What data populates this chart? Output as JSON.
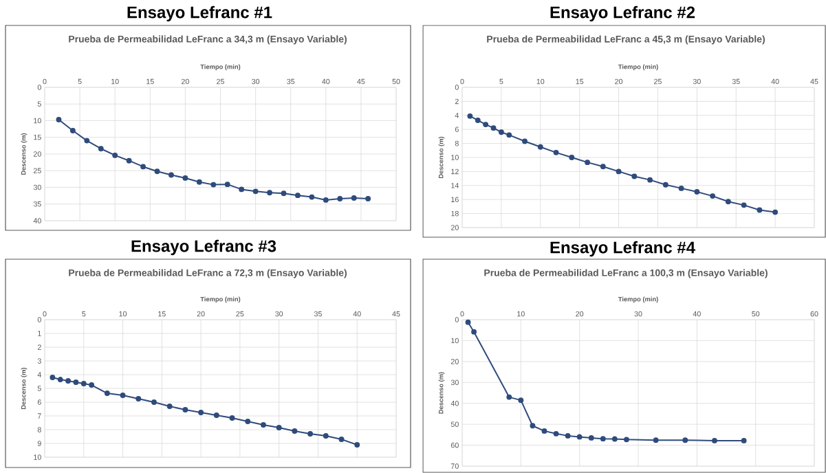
{
  "chart_data": [
    {
      "type": "line",
      "title": "Ensayo Lefranc #1",
      "subtitle": "Prueba de Permeabilidad LeFranc a 34,3 m (Ensayo Variable)",
      "xlabel": "Tiempo (min)",
      "ylabel": "Descenso (m)",
      "x": [
        2,
        4,
        6,
        8,
        10,
        12,
        14,
        16,
        18,
        20,
        22,
        24,
        26,
        28,
        30,
        32,
        34,
        36,
        38,
        40,
        42,
        44,
        46
      ],
      "values": [
        9.7,
        13,
        16,
        18.4,
        20.4,
        22,
        23.8,
        25.2,
        26.3,
        27.2,
        28.4,
        29.2,
        29.1,
        30.6,
        31.2,
        31.6,
        31.8,
        32.4,
        32.9,
        33.8,
        33.4,
        33.2,
        33.4
      ],
      "color": "#2f4b7c",
      "marker": "circle",
      "grid": true,
      "xlim": [
        0,
        50
      ],
      "xticks": [
        0,
        5,
        10,
        15,
        20,
        25,
        30,
        35,
        40,
        45,
        50
      ],
      "ylim": [
        40,
        0
      ],
      "yticks": [
        0,
        5,
        10,
        15,
        20,
        25,
        30,
        35,
        40
      ]
    },
    {
      "type": "line",
      "title": "Ensayo Lefranc #2",
      "subtitle": "Prueba de Permeabilidad LeFranc a 45,3 m (Ensayo Variable)",
      "xlabel": "Tiempo (min)",
      "ylabel": "Descenso (m)",
      "x": [
        1,
        2,
        3,
        4,
        5,
        6,
        8,
        10,
        12,
        14,
        16,
        18,
        20,
        22,
        24,
        26,
        28,
        30,
        32,
        34,
        36,
        38,
        40
      ],
      "values": [
        4.1,
        4.7,
        5.3,
        5.8,
        6.4,
        6.8,
        7.7,
        8.5,
        9.3,
        10.0,
        10.7,
        11.3,
        12.0,
        12.7,
        13.2,
        13.9,
        14.4,
        14.9,
        15.5,
        16.3,
        16.8,
        17.5,
        17.8
      ],
      "color": "#2f4b7c",
      "marker": "circle",
      "grid": true,
      "xlim": [
        0,
        45
      ],
      "xticks": [
        0,
        5,
        10,
        15,
        20,
        25,
        30,
        35,
        40,
        45
      ],
      "ylim": [
        20,
        0
      ],
      "yticks": [
        0,
        2,
        4,
        6,
        8,
        10,
        12,
        14,
        16,
        18,
        20
      ]
    },
    {
      "type": "line",
      "title": "Ensayo Lefranc #3",
      "subtitle": "Prueba de Permeabilidad LeFranc a 72,3 m (Ensayo Variable)",
      "xlabel": "Tiempo (min)",
      "ylabel": "Descenso (m)",
      "x": [
        1,
        2,
        3,
        4,
        5,
        6,
        8,
        10,
        12,
        14,
        16,
        18,
        20,
        22,
        24,
        26,
        28,
        30,
        32,
        34,
        36,
        38,
        40
      ],
      "values": [
        4.2,
        4.35,
        4.45,
        4.55,
        4.65,
        4.75,
        5.35,
        5.5,
        5.75,
        6.0,
        6.3,
        6.55,
        6.75,
        6.95,
        7.15,
        7.4,
        7.65,
        7.85,
        8.1,
        8.3,
        8.45,
        8.7,
        9.1
      ],
      "color": "#2f4b7c",
      "marker": "circle",
      "grid": true,
      "xlim": [
        0,
        45
      ],
      "xticks": [
        0,
        5,
        10,
        15,
        20,
        25,
        30,
        35,
        40,
        45
      ],
      "ylim": [
        10,
        0
      ],
      "yticks": [
        0,
        1,
        2,
        3,
        4,
        5,
        6,
        7,
        8,
        9,
        10
      ]
    },
    {
      "type": "line",
      "title": "Ensayo Lefranc #4",
      "subtitle": "Prueba de Permeabilidad LeFranc a 100,3 m (Ensayo Variable)",
      "xlabel": "Tiempo (min)",
      "ylabel": "Descenso (m)",
      "x": [
        1,
        2,
        8,
        10,
        12,
        14,
        16,
        18,
        20,
        22,
        24,
        26,
        28,
        33,
        38,
        43,
        48
      ],
      "values": [
        1.2,
        5.8,
        37,
        38.5,
        50.7,
        53.2,
        54.5,
        55.5,
        56,
        56.5,
        56.9,
        57,
        57.3,
        57.6,
        57.6,
        57.8,
        57.8
      ],
      "color": "#2f4b7c",
      "marker": "circle",
      "grid": true,
      "xlim": [
        0,
        60
      ],
      "xticks": [
        0,
        10,
        20,
        30,
        40,
        50,
        60
      ],
      "ylim": [
        70,
        0
      ],
      "yticks": [
        0,
        10,
        20,
        30,
        40,
        50,
        60,
        70
      ]
    }
  ]
}
